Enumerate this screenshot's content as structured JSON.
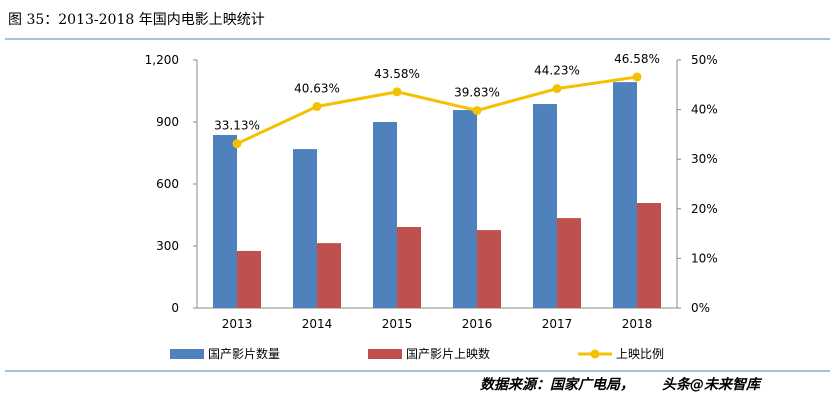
{
  "chart_data": {
    "type": "bar-line",
    "title": "图 35：2013-2018 年国内电影上映统计",
    "source": "数据来源：国家广电局，",
    "watermark": "头条@未来智库",
    "categories": [
      "2013",
      "2014",
      "2015",
      "2016",
      "2017",
      "2018"
    ],
    "series": [
      {
        "name": "国产影片数量",
        "type": "bar",
        "color": "#4f81bd",
        "values": [
          837,
          769,
          900,
          958,
          987,
          1093
        ]
      },
      {
        "name": "国产影片上映数",
        "type": "bar",
        "color": "#c0504d",
        "values": [
          276,
          314,
          392,
          377,
          435,
          508
        ]
      },
      {
        "name": "上映比例",
        "type": "line",
        "axis": "y2",
        "color": "#f5c000",
        "values": [
          33.13,
          40.63,
          43.58,
          39.83,
          44.23,
          46.58
        ],
        "value_labels": [
          "33.13%",
          "40.63%",
          "43.58%",
          "39.83%",
          "44.23%",
          "46.58%"
        ]
      }
    ],
    "ylim": [
      0,
      1200
    ],
    "yticks": [
      0,
      300,
      600,
      900,
      {
        "value": 1200,
        "label": "1,200"
      }
    ],
    "y2lim": [
      0,
      50
    ],
    "y2ticks": [
      {
        "value": 0,
        "label": "0%"
      },
      {
        "value": 10,
        "label": "10%"
      },
      {
        "value": 20,
        "label": "20%"
      },
      {
        "value": 30,
        "label": "30%"
      },
      {
        "value": 40,
        "label": "40%"
      },
      {
        "value": 50,
        "label": "50%"
      }
    ]
  }
}
